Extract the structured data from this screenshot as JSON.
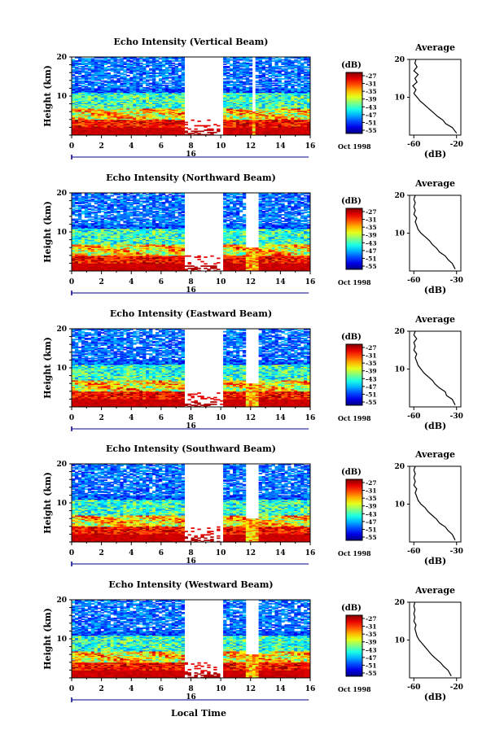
{
  "figure": {
    "xlabel": "Local Time",
    "date_label": "Oct 1998",
    "day_label": "16"
  },
  "chart_data": [
    {
      "type": "heatmap",
      "title": "Echo Intensity (Vertical Beam)",
      "ylabel": "Height (km)",
      "xlim": [
        0,
        16
      ],
      "ylim": [
        0,
        20
      ],
      "x_ticks": [
        "0",
        "2",
        "4",
        "6",
        "8",
        "10",
        "12",
        "14",
        "16"
      ],
      "y_ticks": [
        "10",
        "20"
      ],
      "colorbar": {
        "unit": "(dB)",
        "ticks": [
          "-27",
          "-31",
          "-35",
          "-39",
          "-43",
          "-47",
          "-51",
          "-55"
        ]
      },
      "data_gaps": [
        [
          7.5,
          10.1
        ],
        [
          12.1,
          12.3
        ]
      ],
      "profile": {
        "title": "Average",
        "xlabel": "(dB)",
        "xticks": [
          "-60",
          "-20"
        ],
        "yticks": [
          "10",
          "20"
        ],
        "heights": [
          0.5,
          2,
          3,
          4,
          5,
          6,
          7,
          8,
          9,
          10,
          11,
          12,
          13,
          14,
          15,
          16,
          17,
          18,
          19,
          20
        ],
        "values": [
          -20,
          -24,
          -30,
          -33,
          -38,
          -42,
          -46,
          -50,
          -54,
          -57,
          -60,
          -58,
          -61,
          -57,
          -59,
          -56,
          -60,
          -57,
          -59,
          -58
        ]
      }
    },
    {
      "type": "heatmap",
      "title": "Echo Intensity (Northward Beam)",
      "ylabel": "Height (km)",
      "xlim": [
        0,
        16
      ],
      "ylim": [
        0,
        20
      ],
      "x_ticks": [
        "0",
        "2",
        "4",
        "6",
        "8",
        "10",
        "12",
        "14",
        "16"
      ],
      "y_ticks": [
        "10",
        "20"
      ],
      "colorbar": {
        "unit": "(dB)",
        "ticks": [
          "-27",
          "-31",
          "-35",
          "-39",
          "-43",
          "-47",
          "-51",
          "-55"
        ]
      },
      "data_gaps": [
        [
          7.5,
          10.1
        ],
        [
          11.7,
          12.5
        ]
      ],
      "profile": {
        "title": "Average",
        "xlabel": "(dB)",
        "xticks": [
          "-60",
          "-30"
        ],
        "yticks": [
          "10",
          "20"
        ],
        "heights": [
          0.5,
          2,
          3,
          4,
          5,
          6,
          7,
          8,
          9,
          10,
          11,
          12,
          13,
          14,
          15,
          16,
          17,
          18,
          19,
          20
        ],
        "values": [
          -31,
          -33,
          -36,
          -38,
          -42,
          -44,
          -47,
          -49,
          -52,
          -55,
          -57,
          -58,
          -59,
          -58,
          -60,
          -59,
          -60,
          -59,
          -60,
          -59
        ]
      }
    },
    {
      "type": "heatmap",
      "title": "Echo Intensity (Eastward Beam)",
      "ylabel": "Height (km)",
      "xlim": [
        0,
        16
      ],
      "ylim": [
        0,
        20
      ],
      "x_ticks": [
        "0",
        "2",
        "4",
        "6",
        "8",
        "10",
        "12",
        "14",
        "16"
      ],
      "y_ticks": [
        "10",
        "20"
      ],
      "colorbar": {
        "unit": "(dB)",
        "ticks": [
          "-27",
          "-31",
          "-35",
          "-39",
          "-43",
          "-47",
          "-51",
          "-55"
        ]
      },
      "data_gaps": [
        [
          7.5,
          10.1
        ],
        [
          11.7,
          12.5
        ]
      ],
      "profile": {
        "title": "Average",
        "xlabel": "(dB)",
        "xticks": [
          "-60",
          "-30"
        ],
        "yticks": [
          "10",
          "20"
        ],
        "heights": [
          0.5,
          2,
          3,
          4,
          5,
          6,
          7,
          8,
          9,
          10,
          11,
          12,
          13,
          14,
          15,
          16,
          17,
          18,
          19,
          20
        ],
        "values": [
          -31,
          -33,
          -37,
          -38,
          -42,
          -45,
          -47,
          -50,
          -53,
          -55,
          -57,
          -58,
          -59,
          -58,
          -60,
          -59,
          -60,
          -58,
          -60,
          -59
        ]
      }
    },
    {
      "type": "heatmap",
      "title": "Echo Intensity (Southward Beam)",
      "ylabel": "Height (km)",
      "xlim": [
        0,
        16
      ],
      "ylim": [
        0,
        20
      ],
      "x_ticks": [
        "0",
        "2",
        "4",
        "6",
        "8",
        "10",
        "12",
        "14",
        "16"
      ],
      "y_ticks": [
        "10",
        "20"
      ],
      "colorbar": {
        "unit": "(dB)",
        "ticks": [
          "-27",
          "-31",
          "-35",
          "-39",
          "-43",
          "-47",
          "-51",
          "-55"
        ]
      },
      "data_gaps": [
        [
          7.5,
          10.1
        ],
        [
          11.7,
          12.5
        ]
      ],
      "profile": {
        "title": "Average",
        "xlabel": "(dB)",
        "xticks": [
          "-60",
          "-30"
        ],
        "yticks": [
          "10",
          "20"
        ],
        "heights": [
          0.5,
          2,
          3,
          4,
          5,
          6,
          7,
          8,
          9,
          10,
          11,
          12,
          13,
          14,
          15,
          16,
          17,
          18,
          19,
          20
        ],
        "values": [
          -31,
          -33,
          -36,
          -38,
          -42,
          -44,
          -47,
          -50,
          -52,
          -55,
          -57,
          -58,
          -59,
          -58,
          -60,
          -59,
          -60,
          -59,
          -60,
          -59
        ]
      }
    },
    {
      "type": "heatmap",
      "title": "Echo Intensity (Westward Beam)",
      "ylabel": "Height (km)",
      "xlim": [
        0,
        16
      ],
      "ylim": [
        0,
        20
      ],
      "x_ticks": [
        "0",
        "2",
        "4",
        "6",
        "8",
        "10",
        "12",
        "14",
        "16"
      ],
      "y_ticks": [
        "10",
        "20"
      ],
      "colorbar": {
        "unit": "(dB)",
        "ticks": [
          "-27",
          "-31",
          "-35",
          "-39",
          "-43",
          "-47",
          "-51",
          "-55"
        ]
      },
      "data_gaps": [
        [
          7.5,
          10.1
        ],
        [
          11.7,
          12.5
        ]
      ],
      "profile": {
        "title": "Average",
        "xlabel": "(dB)",
        "xticks": [
          "-60",
          "-20"
        ],
        "yticks": [
          "10",
          "20"
        ],
        "heights": [
          0.5,
          2,
          3,
          4,
          5,
          6,
          7,
          8,
          9,
          10,
          11,
          12,
          13,
          14,
          15,
          16,
          17,
          18,
          19,
          20
        ],
        "values": [
          -25,
          -28,
          -32,
          -35,
          -39,
          -43,
          -46,
          -49,
          -52,
          -55,
          -57,
          -58,
          -59,
          -58,
          -60,
          -59,
          -60,
          -59,
          -60,
          -59
        ]
      }
    }
  ]
}
